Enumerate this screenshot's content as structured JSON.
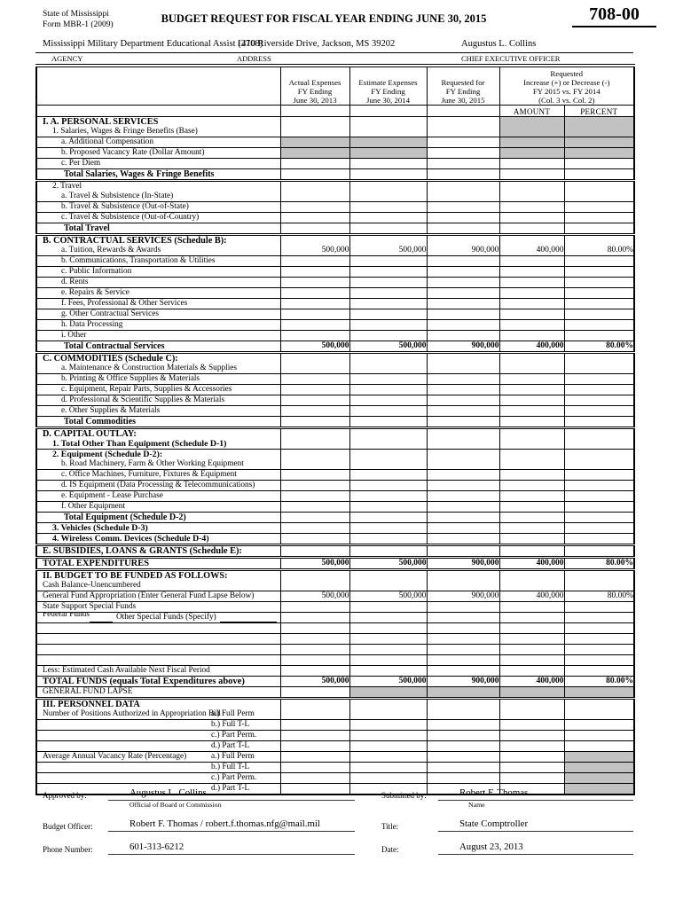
{
  "header": {
    "issuer1": "State of Mississippi",
    "issuer2": "Form MBR-1 (2009)",
    "title": "BUDGET REQUEST FOR FISCAL YEAR ENDING JUNE 30, 2015",
    "form_number": "708-00"
  },
  "agency": {
    "agency_value": "Mississippi Military Department Educational Assist (2708)",
    "address_value": "1410 Riverside Drive, Jackson, MS  39202",
    "ceo_value": "Augustus L. Collins",
    "agency_label": "AGENCY",
    "address_label": "ADDRESS",
    "ceo_label": "CHIEF EXECUTIVE OFFICER"
  },
  "table": {
    "col_headers": {
      "actual": "Actual Expenses\nFY Ending\nJune 30, 2013",
      "estimate": "Estimate Expenses\nFY Ending\nJune 30, 2014",
      "requested": "Requested for\nFY Ending\nJune 30, 2015",
      "group": "Requested\nIncrease (+) or Decrease (-)\nFY 2015 vs. FY 2014\n(Col. 3 vs. Col. 2)",
      "amount": "AMOUNT",
      "percent": "PERCENT"
    },
    "rows": [
      {
        "l1": "I. A. PERSONAL SERVICES",
        "s1": "sec",
        "l2": "1. Salaries, Wages & Fringe Benefits (Base)",
        "s2": "sub1",
        "grey": [
          3,
          4
        ]
      },
      {
        "l1": "a. Additional Compensation",
        "s1": "sub2",
        "grey": [
          0,
          1,
          3,
          4
        ]
      },
      {
        "l1": "b. Proposed Vacancy Rate (Dollar Amount)",
        "s1": "sub2",
        "grey": [
          0,
          1,
          3,
          4
        ]
      },
      {
        "l1": "c. Per Diem",
        "s1": "sub2"
      },
      {
        "l1": "Total Salaries, Wages & Fringe Benefits",
        "s1": "total"
      },
      {
        "l1": "2. Travel",
        "s1": "sub1",
        "l2": "a. Travel & Subsistence (In-State)",
        "s2": "sub2",
        "div": true
      },
      {
        "l1": "b. Travel & Subsistence (Out-of-State)",
        "s1": "sub2"
      },
      {
        "l1": "c. Travel & Subsistence (Out-of-Country)",
        "s1": "sub2"
      },
      {
        "l1": "Total Travel",
        "s1": "total"
      },
      {
        "l1": "B. CONTRACTUAL SERVICES (Schedule B):",
        "s1": "sec",
        "l2": "a. Tuition, Rewards & Awards",
        "s2": "sub2",
        "div": true,
        "vals": [
          "500,000",
          "500,000",
          "900,000",
          "400,000",
          "80.00%"
        ]
      },
      {
        "l1": "b. Communications, Transportation & Utilities",
        "s1": "sub2"
      },
      {
        "l1": "c. Public Information",
        "s1": "sub2"
      },
      {
        "l1": "d. Rents",
        "s1": "sub2"
      },
      {
        "l1": "e. Repairs & Service",
        "s1": "sub2"
      },
      {
        "l1": "f. Fees, Professional & Other Services",
        "s1": "sub2"
      },
      {
        "l1": "g. Other Contractual Services",
        "s1": "sub2"
      },
      {
        "l1": "h. Data Processing",
        "s1": "sub2"
      },
      {
        "l1": "i. Other",
        "s1": "sub2"
      },
      {
        "l1": "Total Contractual Services",
        "s1": "total",
        "vals": [
          "500,000",
          "500,000",
          "900,000",
          "400,000",
          "80.00%"
        ],
        "vbold": true
      },
      {
        "l1": "C. COMMODITIES (Schedule C):",
        "s1": "sec",
        "l2": "a. Maintenance & Construction Materials & Supplies",
        "s2": "sub2",
        "div": true
      },
      {
        "l1": "b. Printing & Office Supplies & Materials",
        "s1": "sub2"
      },
      {
        "l1": "c. Equipment, Repair Parts, Supplies & Accessories",
        "s1": "sub2"
      },
      {
        "l1": "d. Professional & Scientific Supplies & Materials",
        "s1": "sub2"
      },
      {
        "l1": "e. Other Supplies & Materials",
        "s1": "sub2"
      },
      {
        "l1": "Total Commodities",
        "s1": "total"
      },
      {
        "l1": "D. CAPITAL OUTLAY:",
        "s1": "sec",
        "l2": "1. Total Other Than Equipment (Schedule D-1)",
        "s2": "sub1b",
        "div": true
      },
      {
        "l1": "2. Equipment (Schedule D-2):",
        "s1": "sub1b",
        "l2": "b. Road Machinery, Farm & Other Working Equipment",
        "s2": "sub2"
      },
      {
        "l1": "c. Office Machines, Furniture, Fixtures & Equipment",
        "s1": "sub2"
      },
      {
        "l1": "d. IS Equipment (Data Processing & Telecommunications)",
        "s1": "sub2"
      },
      {
        "l1": "e. Equipment - Lease Purchase",
        "s1": "sub2"
      },
      {
        "l1": "f. Other Equipment",
        "s1": "sub2"
      },
      {
        "l1": "Total Equipment (Schedule D-2)",
        "s1": "total"
      },
      {
        "l1": "3. Vehicles (Schedule D-3)",
        "s1": "sub1b"
      },
      {
        "l1": "4. Wireless Comm. Devices (Schedule D-4)",
        "s1": "sub1b"
      },
      {
        "l1": "E. SUBSIDIES, LOANS & GRANTS (Schedule E):",
        "s1": "sec",
        "div": true
      },
      {
        "l1": "TOTAL EXPENDITURES",
        "s1": "grand",
        "div": true,
        "vals": [
          "500,000",
          "500,000",
          "900,000",
          "400,000",
          "80.00%"
        ],
        "vbold": true
      },
      {
        "l1": "II. BUDGET TO BE FUNDED AS FOLLOWS:",
        "s1": "sec",
        "l2": "Cash Balance-Unencumbered",
        "s2": "plain",
        "div": true
      },
      {
        "l1": "General Fund Appropriation (Enter General Fund Lapse Below)",
        "s1": "plain",
        "vals": [
          "500,000",
          "500,000",
          "900,000",
          "400,000",
          "80.00%"
        ]
      },
      {
        "l1": "State Support Special Funds",
        "s1": "plain"
      },
      {
        "l1": "Federal Funds",
        "s1": "plain",
        "special": "federal",
        "extra": "Other Special Funds (Specify)"
      },
      {
        "l1": "",
        "s1": "plain"
      },
      {
        "l1": "",
        "s1": "plain"
      },
      {
        "l1": "",
        "s1": "plain"
      },
      {
        "l1": "",
        "s1": "plain"
      },
      {
        "l1": "Less: Estimated Cash Available Next Fiscal Period",
        "s1": "plain"
      },
      {
        "l1": "TOTAL FUNDS (equals Total Expenditures above)",
        "s1": "grand",
        "vals": [
          "500,000",
          "500,000",
          "900,000",
          "400,000",
          "80.00%"
        ],
        "vbold": true
      },
      {
        "l1": "GENERAL FUND LAPSE",
        "s1": "plain",
        "grey": [
          1,
          2,
          3,
          4
        ]
      },
      {
        "l1": "III. PERSONNEL DATA",
        "s1": "sec",
        "l2": "Number of Positions Authorized in Appropriation Bill",
        "s2": "plain",
        "sub2col": "a.) Full Perm",
        "div": true
      },
      {
        "l1": "",
        "s1": "plain",
        "sub2col": "b.) Full T-L"
      },
      {
        "l1": "",
        "s1": "plain",
        "sub2col": "c.) Part Perm."
      },
      {
        "l1": "",
        "s1": "plain",
        "sub2col": "d.) Part T-L"
      },
      {
        "l1": "Average Annual Vacancy Rate (Percentage)",
        "s1": "plain",
        "sub2col": "a.) Full Perm",
        "grey": [
          4
        ]
      },
      {
        "l1": "",
        "s1": "plain",
        "sub2col": "b.) Full T-L",
        "grey": [
          4
        ]
      },
      {
        "l1": "",
        "s1": "plain",
        "sub2col": "c.) Part Perm.",
        "grey": [
          4
        ]
      },
      {
        "l1": "",
        "s1": "plain",
        "sub2col": "d.) Part T-L",
        "grey": [
          4
        ]
      }
    ]
  },
  "footer": {
    "approved_label": "Approved by:",
    "approved_value": "Augustus L. Collins",
    "approved_sub": "Official of Board or Commission",
    "budget_officer_label": "Budget Officer:",
    "budget_officer_value": "Robert F. Thomas / robert.f.thomas.nfg@mail.mil",
    "phone_label": "Phone Number:",
    "phone_value": "601-313-6212",
    "submitted_label": "Submitted by:",
    "submitted_value": "Robert F. Thomas",
    "submitted_sub": "Name",
    "title_label": "Title:",
    "title_value": "State Comptroller",
    "date_label": "Date:",
    "date_value": "August 23, 2013"
  },
  "colors": {
    "shade": "#c2c2c2"
  }
}
